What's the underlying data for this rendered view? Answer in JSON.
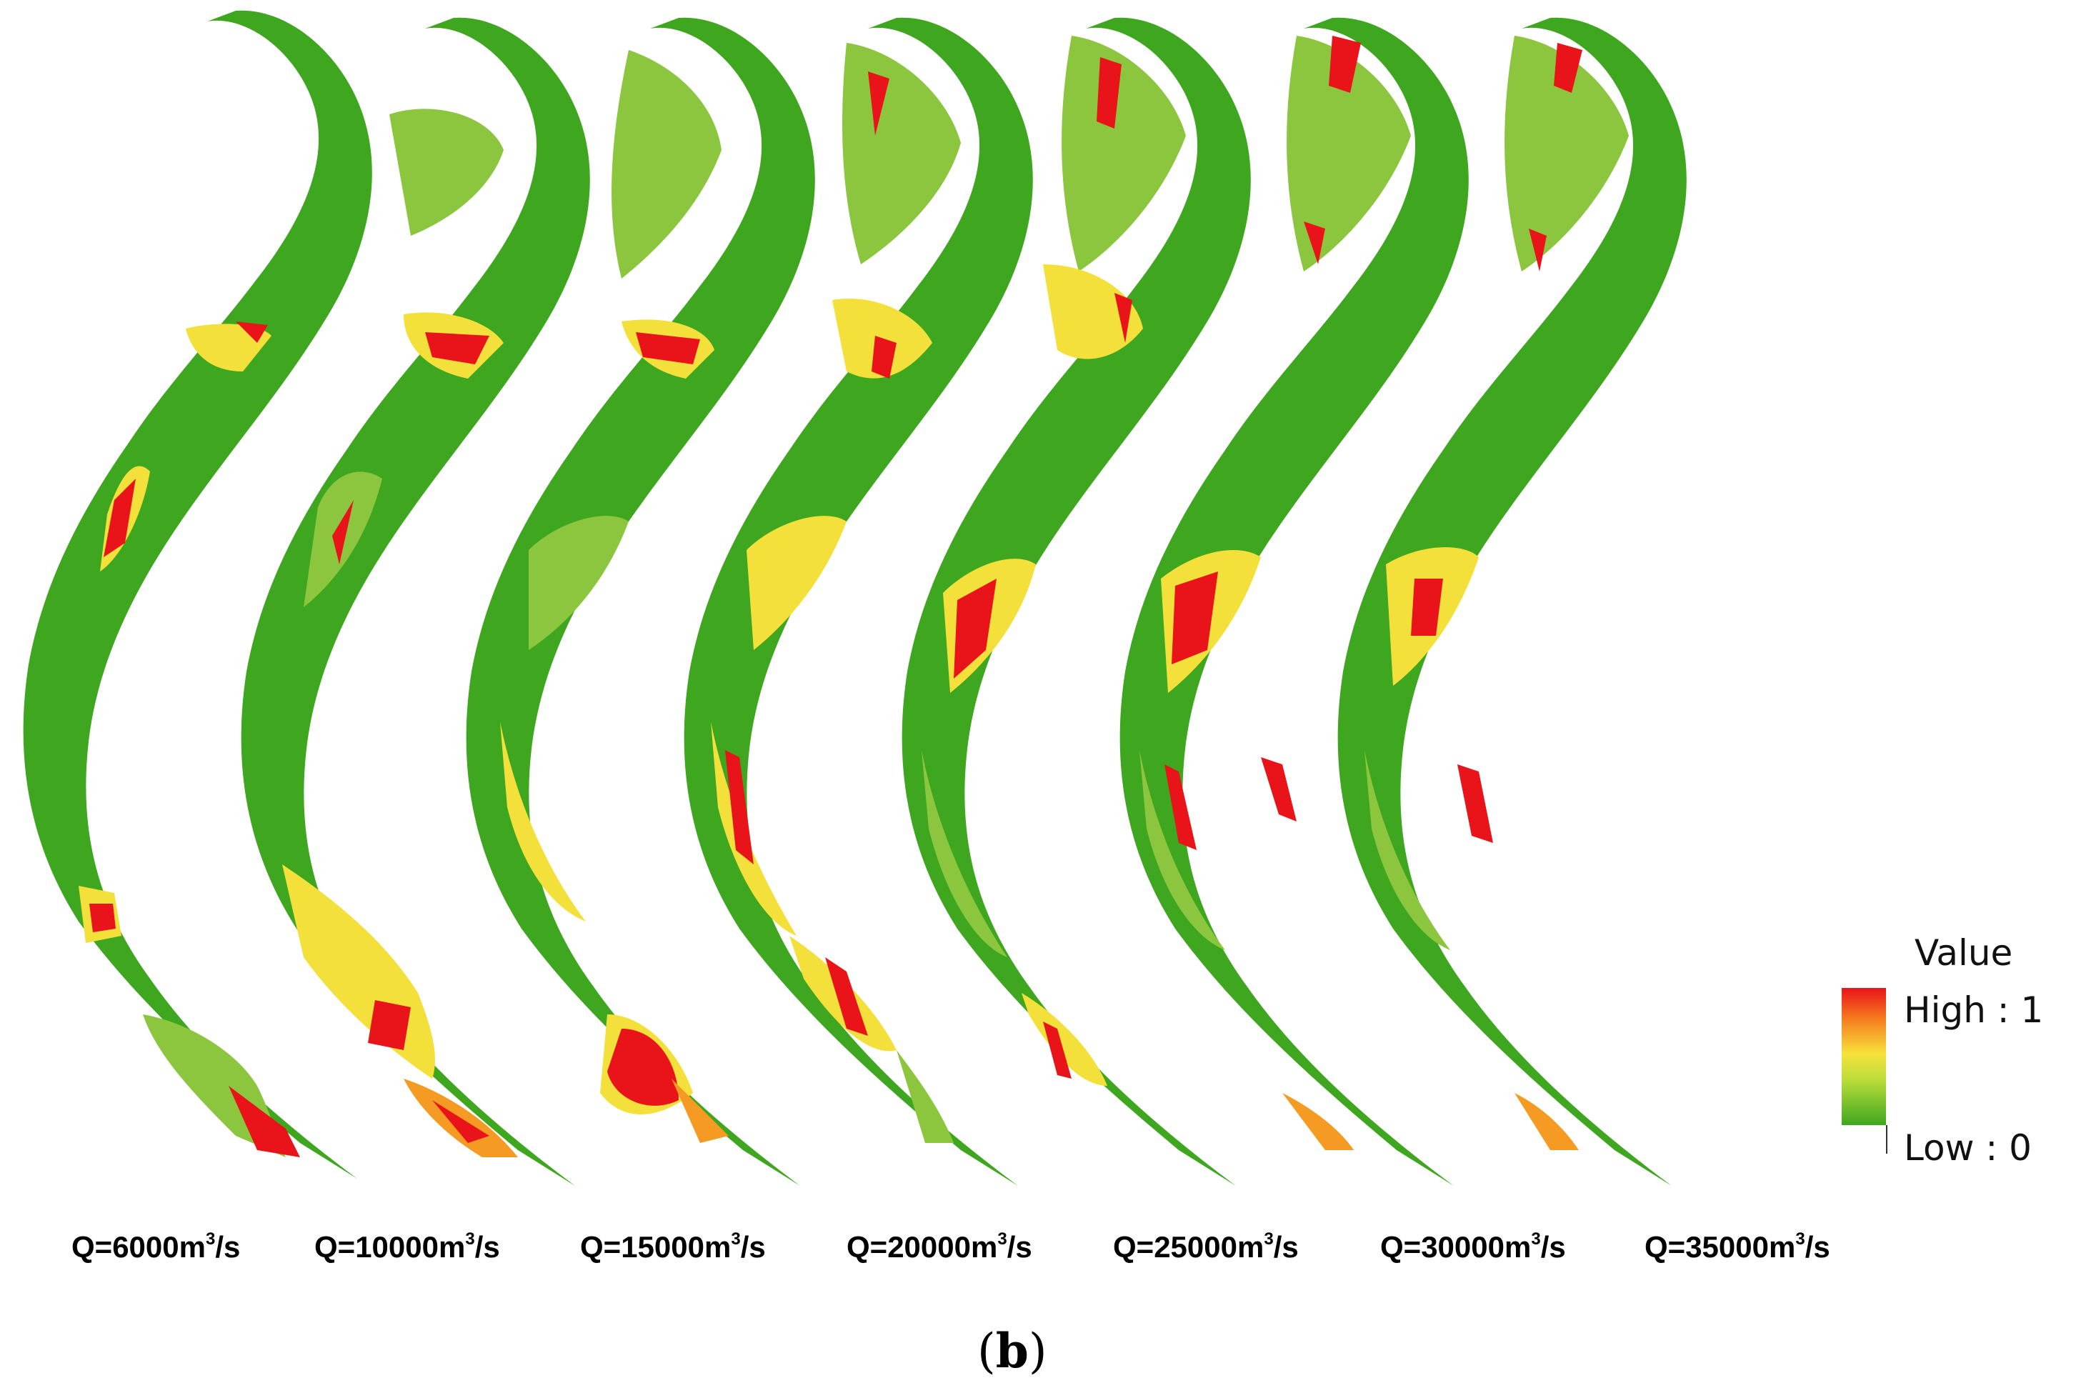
{
  "legend": {
    "title": "Value",
    "high_label": "High : 1",
    "low_label": "Low : 0",
    "ramp_colors": [
      "#e8141a",
      "#f57a1e",
      "#f6e23c",
      "#b7dc3a",
      "#3fa61f"
    ]
  },
  "panels": [
    {
      "caption": "Q=6000m",
      "unit_exp": "3",
      "unit_tail": "/s"
    },
    {
      "caption": "Q=10000m",
      "unit_exp": "3",
      "unit_tail": "/s"
    },
    {
      "caption": "Q=15000m",
      "unit_exp": "3",
      "unit_tail": "/s"
    },
    {
      "caption": "Q=20000m",
      "unit_exp": "3",
      "unit_tail": "/s"
    },
    {
      "caption": "Q=25000m",
      "unit_exp": "3",
      "unit_tail": "/s"
    },
    {
      "caption": "Q=30000m",
      "unit_exp": "3",
      "unit_tail": "/s"
    },
    {
      "caption": "Q=35000m",
      "unit_exp": "3",
      "unit_tail": "/s"
    }
  ],
  "figure_label_open": "(",
  "figure_label_letter": "b",
  "figure_label_close": ")",
  "colors": {
    "river_base": "#3fa61f",
    "mid_green": "#8cc63f",
    "yellow": "#f3e03b",
    "orange": "#f59a23",
    "red": "#e8141a"
  }
}
